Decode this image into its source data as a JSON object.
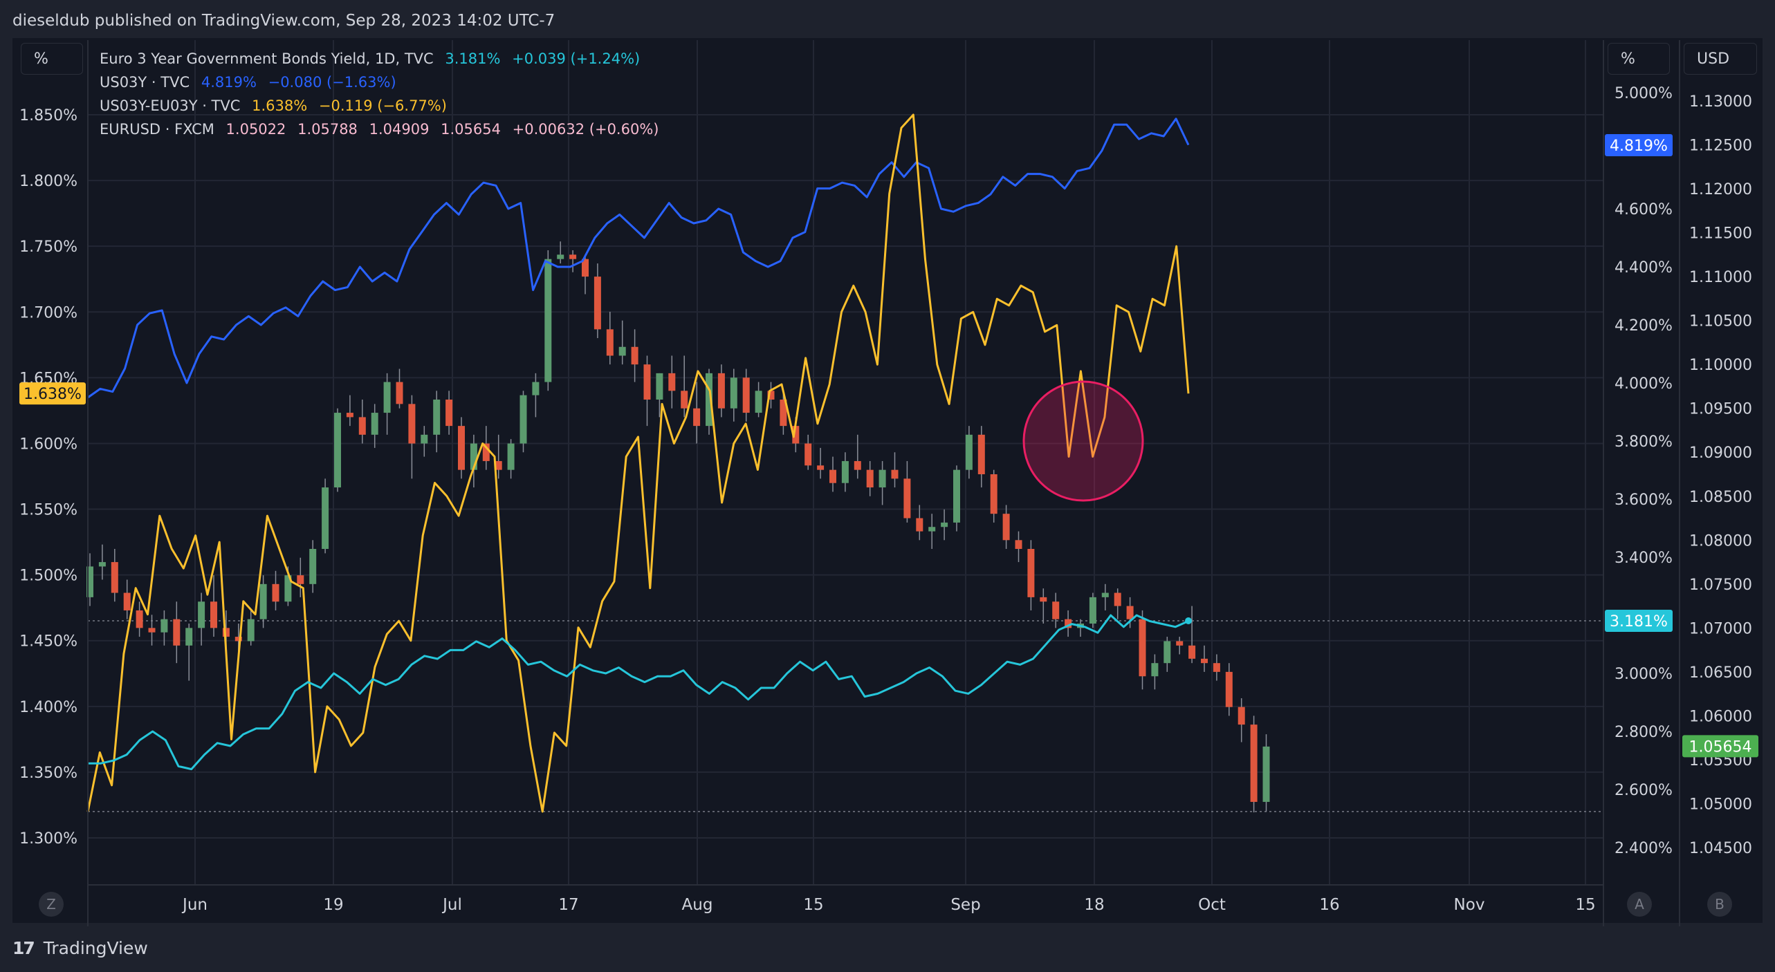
{
  "header": {
    "publish_line": "dieseldub published on TradingView.com, Sep 28, 2023 14:02 UTC-7"
  },
  "footer": {
    "logo_mark": "17",
    "brand": "TradingView"
  },
  "left_scale_unit": "%",
  "right_scale_unit": "%",
  "currency_scale_unit": "USD",
  "corner_buttons": {
    "bottom_left": "Z",
    "scale_a": "A",
    "scale_b": "B"
  },
  "legend": [
    {
      "label": "Euro 3 Year Government Bonds Yield, 1D, TVC",
      "values": [
        "3.181%",
        "+0.039 (+1.24%)"
      ],
      "color": "#26c6da"
    },
    {
      "label": "US03Y · TVC",
      "values": [
        "4.819%",
        "−0.080 (−1.63%)"
      ],
      "color": "#2962ff"
    },
    {
      "label": "US03Y-EU03Y · TVC",
      "values": [
        "1.638%",
        "−0.119 (−6.77%)"
      ],
      "color": "#fbc02d"
    },
    {
      "label": "EURUSD · FXCM",
      "values": [
        "1.05022",
        "1.05788",
        "1.04909",
        "1.05654",
        "+0.00632 (+0.60%)"
      ],
      "color": "#f8bbd0"
    }
  ],
  "chart_data": {
    "type": "line",
    "x_axis": {
      "ticks": [
        "Jun",
        "19",
        "Jul",
        "17",
        "Aug",
        "15",
        "Sep",
        "18",
        "Oct",
        "16",
        "Nov",
        "15"
      ]
    },
    "left_axis": {
      "unit": "%",
      "ticks": [
        "1.850%",
        "1.800%",
        "1.750%",
        "1.700%",
        "1.650%",
        "1.600%",
        "1.550%",
        "1.500%",
        "1.450%",
        "1.400%",
        "1.350%",
        "1.300%"
      ],
      "range": [
        1.28,
        1.875
      ]
    },
    "right_axis": {
      "unit": "%",
      "ticks": [
        "5.000%",
        "4.600%",
        "4.400%",
        "4.200%",
        "4.000%",
        "3.800%",
        "3.600%",
        "3.400%",
        "3.000%",
        "2.800%",
        "2.600%",
        "2.400%"
      ],
      "range": [
        2.35,
        5.1
      ]
    },
    "usd_axis": {
      "unit": "USD",
      "ticks": [
        "1.13000",
        "1.12500",
        "1.12000",
        "1.11500",
        "1.11000",
        "1.10500",
        "1.10000",
        "1.09500",
        "1.09000",
        "1.08500",
        "1.08000",
        "1.07500",
        "1.07000",
        "1.06500",
        "1.06000",
        "1.05500",
        "1.05000",
        "1.04500"
      ],
      "range": [
        1.0425,
        1.134
      ]
    },
    "price_labels": [
      {
        "text": "1.638%",
        "color": "#fbc02d",
        "value": 1.638,
        "axis": "left"
      },
      {
        "text": "4.819%",
        "color": "#2962ff",
        "value": 4.819,
        "axis": "right"
      },
      {
        "text": "3.181%",
        "color": "#26c6da",
        "value": 3.181,
        "axis": "right"
      },
      {
        "text": "1.05654",
        "color": "#4caf50",
        "value": 1.05654,
        "axis": "usd"
      }
    ],
    "series": [
      {
        "name": "US03Y · TVC",
        "color": "#2962ff",
        "axis": "right",
        "values": [
          3.95,
          3.98,
          3.97,
          4.05,
          4.2,
          4.24,
          4.25,
          4.1,
          4.0,
          4.1,
          4.16,
          4.15,
          4.2,
          4.23,
          4.2,
          4.24,
          4.26,
          4.23,
          4.3,
          4.35,
          4.32,
          4.33,
          4.4,
          4.35,
          4.38,
          4.35,
          4.46,
          4.52,
          4.58,
          4.62,
          4.58,
          4.65,
          4.69,
          4.68,
          4.6,
          4.62,
          4.32,
          4.42,
          4.4,
          4.4,
          4.42,
          4.5,
          4.55,
          4.58,
          4.54,
          4.5,
          4.56,
          4.62,
          4.57,
          4.55,
          4.56,
          4.6,
          4.58,
          4.45,
          4.42,
          4.4,
          4.42,
          4.5,
          4.52,
          4.67,
          4.67,
          4.69,
          4.68,
          4.64,
          4.72,
          4.76,
          4.71,
          4.76,
          4.74,
          4.6,
          4.59,
          4.61,
          4.62,
          4.65,
          4.71,
          4.68,
          4.72,
          4.72,
          4.71,
          4.67,
          4.73,
          4.74,
          4.8,
          4.89,
          4.89,
          4.84,
          4.86,
          4.85,
          4.91,
          4.82
        ]
      },
      {
        "name": "US03Y-EU03Y · TVC",
        "color": "#fbc02d",
        "axis": "left",
        "values": [
          1.32,
          1.365,
          1.34,
          1.44,
          1.49,
          1.47,
          1.545,
          1.52,
          1.505,
          1.53,
          1.485,
          1.525,
          1.375,
          1.48,
          1.47,
          1.545,
          1.52,
          1.495,
          1.49,
          1.35,
          1.4,
          1.39,
          1.37,
          1.38,
          1.43,
          1.455,
          1.465,
          1.45,
          1.53,
          1.57,
          1.56,
          1.545,
          1.575,
          1.6,
          1.59,
          1.45,
          1.435,
          1.37,
          1.32,
          1.38,
          1.37,
          1.46,
          1.445,
          1.48,
          1.495,
          1.59,
          1.605,
          1.49,
          1.63,
          1.6,
          1.62,
          1.655,
          1.64,
          1.555,
          1.6,
          1.615,
          1.58,
          1.64,
          1.645,
          1.605,
          1.665,
          1.615,
          1.645,
          1.7,
          1.72,
          1.7,
          1.66,
          1.79,
          1.84,
          1.85,
          1.74,
          1.66,
          1.63,
          1.695,
          1.7,
          1.675,
          1.71,
          1.705,
          1.72,
          1.715,
          1.685,
          1.69,
          1.59,
          1.655,
          1.59,
          1.62,
          1.705,
          1.7,
          1.67,
          1.71,
          1.705,
          1.75,
          1.638
        ]
      },
      {
        "name": "Euro 3 Year Government Bonds Yield, 1D, TVC",
        "color": "#26c6da",
        "axis": "right",
        "values": [
          2.69,
          2.69,
          2.7,
          2.72,
          2.77,
          2.8,
          2.77,
          2.68,
          2.67,
          2.72,
          2.76,
          2.75,
          2.79,
          2.81,
          2.81,
          2.86,
          2.94,
          2.97,
          2.95,
          3.0,
          2.97,
          2.93,
          2.98,
          2.96,
          2.98,
          3.03,
          3.06,
          3.05,
          3.08,
          3.08,
          3.11,
          3.09,
          3.12,
          3.08,
          3.03,
          3.04,
          3.01,
          2.99,
          3.03,
          3.01,
          3.0,
          3.02,
          2.99,
          2.97,
          2.99,
          2.99,
          3.01,
          2.96,
          2.93,
          2.97,
          2.95,
          2.91,
          2.95,
          2.95,
          3.0,
          3.04,
          3.01,
          3.04,
          2.98,
          2.99,
          2.92,
          2.93,
          2.95,
          2.97,
          3.0,
          3.02,
          2.99,
          2.94,
          2.93,
          2.96,
          3.0,
          3.04,
          3.03,
          3.05,
          3.1,
          3.15,
          3.17,
          3.16,
          3.14,
          3.2,
          3.16,
          3.2,
          3.18,
          3.17,
          3.16,
          3.18
        ]
      }
    ],
    "candles": {
      "name": "EURUSD · FXCM",
      "axis": "usd",
      "up_color": "#5b9b6e",
      "down_color": "#e0573e",
      "ohlc": [
        [
          1.0735,
          1.0785,
          1.0725,
          1.077
        ],
        [
          1.077,
          1.0795,
          1.0755,
          1.0775
        ],
        [
          1.0775,
          1.079,
          1.073,
          1.074
        ],
        [
          1.074,
          1.0755,
          1.071,
          1.072
        ],
        [
          1.072,
          1.073,
          1.069,
          1.07
        ],
        [
          1.07,
          1.0715,
          1.068,
          1.0695
        ],
        [
          1.0695,
          1.072,
          1.068,
          1.071
        ],
        [
          1.071,
          1.073,
          1.066,
          1.068
        ],
        [
          1.068,
          1.0705,
          1.064,
          1.07
        ],
        [
          1.07,
          1.074,
          1.068,
          1.073
        ],
        [
          1.073,
          1.076,
          1.069,
          1.07
        ],
        [
          1.07,
          1.072,
          1.067,
          1.069
        ],
        [
          1.069,
          1.0705,
          1.0665,
          1.0685
        ],
        [
          1.0685,
          1.072,
          1.068,
          1.071
        ],
        [
          1.071,
          1.076,
          1.07,
          1.075
        ],
        [
          1.075,
          1.0765,
          1.072,
          1.073
        ],
        [
          1.073,
          1.077,
          1.0725,
          1.076
        ],
        [
          1.076,
          1.078,
          1.0735,
          1.075
        ],
        [
          1.075,
          1.08,
          1.074,
          1.079
        ],
        [
          1.079,
          1.087,
          1.0785,
          1.086
        ],
        [
          1.086,
          1.095,
          1.0855,
          1.0945
        ],
        [
          1.0945,
          1.0965,
          1.093,
          1.094
        ],
        [
          1.094,
          1.096,
          1.091,
          1.092
        ],
        [
          1.092,
          1.0955,
          1.0905,
          1.0945
        ],
        [
          1.0945,
          1.099,
          1.092,
          1.098
        ],
        [
          1.098,
          1.0995,
          1.095,
          1.0955
        ],
        [
          1.0955,
          1.0965,
          1.087,
          1.091
        ],
        [
          1.091,
          1.093,
          1.0895,
          1.092
        ],
        [
          1.092,
          1.097,
          1.09,
          1.096
        ],
        [
          1.096,
          1.097,
          1.092,
          1.093
        ],
        [
          1.093,
          1.094,
          1.087,
          1.088
        ],
        [
          1.088,
          1.092,
          1.086,
          1.091
        ],
        [
          1.091,
          1.093,
          1.088,
          1.089
        ],
        [
          1.089,
          1.092,
          1.087,
          1.088
        ],
        [
          1.088,
          1.0915,
          1.087,
          1.091
        ],
        [
          1.091,
          1.097,
          1.09,
          1.0965
        ],
        [
          1.0965,
          1.099,
          1.094,
          1.098
        ],
        [
          1.098,
          1.113,
          1.097,
          1.112
        ],
        [
          1.112,
          1.114,
          1.1115,
          1.1125
        ],
        [
          1.1125,
          1.113,
          1.1105,
          1.112
        ],
        [
          1.112,
          1.1125,
          1.108,
          1.11
        ],
        [
          1.11,
          1.1115,
          1.103,
          1.104
        ],
        [
          1.104,
          1.106,
          1.1,
          1.101
        ],
        [
          1.101,
          1.105,
          1.1,
          1.102
        ],
        [
          1.102,
          1.104,
          1.098,
          1.1
        ],
        [
          1.1,
          1.101,
          1.093,
          1.096
        ],
        [
          1.096,
          1.099,
          1.094,
          1.099
        ],
        [
          1.099,
          1.101,
          1.095,
          1.097
        ],
        [
          1.097,
          1.101,
          1.094,
          1.095
        ],
        [
          1.095,
          1.098,
          1.091,
          1.093
        ],
        [
          1.093,
          1.0995,
          1.092,
          1.099
        ],
        [
          1.099,
          1.1,
          1.094,
          1.095
        ],
        [
          1.095,
          1.0995,
          1.0935,
          1.0985
        ],
        [
          1.0985,
          1.0995,
          1.0935,
          1.0945
        ],
        [
          1.0945,
          1.098,
          1.094,
          1.097
        ],
        [
          1.097,
          1.098,
          1.095,
          1.096
        ],
        [
          1.096,
          1.097,
          1.092,
          1.093
        ],
        [
          1.093,
          1.094,
          1.09,
          1.091
        ],
        [
          1.091,
          1.092,
          1.088,
          1.0885
        ],
        [
          1.0885,
          1.0905,
          1.087,
          1.088
        ],
        [
          1.088,
          1.0895,
          1.0855,
          1.0865
        ],
        [
          1.0865,
          1.09,
          1.0855,
          1.089
        ],
        [
          1.089,
          1.092,
          1.087,
          1.088
        ],
        [
          1.088,
          1.089,
          1.085,
          1.086
        ],
        [
          1.086,
          1.089,
          1.084,
          1.088
        ],
        [
          1.088,
          1.09,
          1.086,
          1.087
        ],
        [
          1.087,
          1.089,
          1.082,
          1.0825
        ],
        [
          1.0825,
          1.084,
          1.08,
          1.081
        ],
        [
          1.081,
          1.083,
          1.079,
          1.0815
        ],
        [
          1.0815,
          1.0835,
          1.08,
          1.082
        ],
        [
          1.082,
          1.0885,
          1.081,
          1.088
        ],
        [
          1.088,
          1.093,
          1.087,
          1.092
        ],
        [
          1.092,
          1.093,
          1.086,
          1.0875
        ],
        [
          1.0875,
          1.088,
          1.082,
          1.083
        ],
        [
          1.083,
          1.084,
          1.079,
          1.08
        ],
        [
          1.08,
          1.081,
          1.0775,
          1.079
        ],
        [
          1.079,
          1.08,
          1.072,
          1.0735
        ],
        [
          1.0735,
          1.0745,
          1.0705,
          1.073
        ],
        [
          1.073,
          1.074,
          1.07,
          1.071
        ],
        [
          1.071,
          1.072,
          1.069,
          1.07
        ],
        [
          1.07,
          1.071,
          1.069,
          1.0705
        ],
        [
          1.0705,
          1.074,
          1.07,
          1.0735
        ],
        [
          1.0735,
          1.075,
          1.072,
          1.074
        ],
        [
          1.074,
          1.0745,
          1.071,
          1.0725
        ],
        [
          1.0725,
          1.0735,
          1.07,
          1.071
        ],
        [
          1.071,
          1.072,
          1.063,
          1.0645
        ],
        [
          1.0645,
          1.067,
          1.063,
          1.066
        ],
        [
          1.066,
          1.069,
          1.065,
          1.0685
        ],
        [
          1.0685,
          1.069,
          1.067,
          1.068
        ],
        [
          1.068,
          1.0725,
          1.066,
          1.0665
        ],
        [
          1.0665,
          1.068,
          1.065,
          1.066
        ],
        [
          1.066,
          1.067,
          1.064,
          1.065
        ],
        [
          1.065,
          1.066,
          1.06,
          1.061
        ],
        [
          1.061,
          1.062,
          1.057,
          1.059
        ],
        [
          1.059,
          1.06,
          1.049,
          1.0502
        ],
        [
          1.0502,
          1.0579,
          1.0491,
          1.0565
        ]
      ]
    }
  }
}
